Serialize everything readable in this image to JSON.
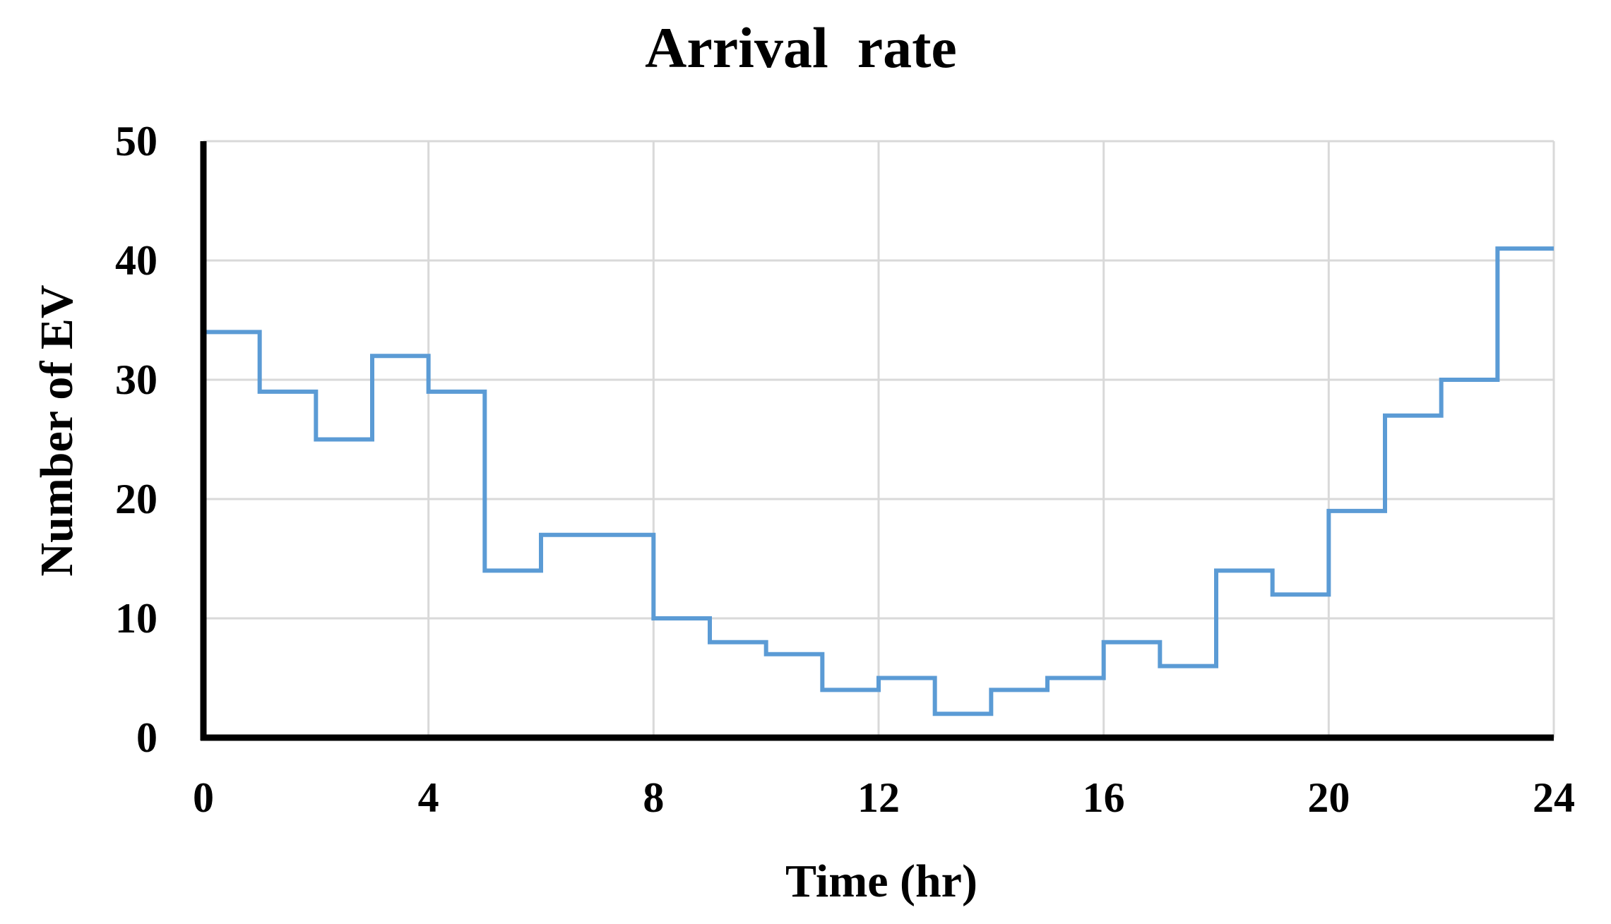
{
  "chart_data": {
    "type": "line",
    "title": "Arrival  rate",
    "xlabel": "Time (hr)",
    "ylabel": "Number of EV",
    "xlim": [
      0,
      24
    ],
    "ylim": [
      0,
      50
    ],
    "x_ticks": [
      "0",
      "4",
      "8",
      "12",
      "16",
      "20",
      "24"
    ],
    "y_ticks": [
      "0",
      "10",
      "20",
      "30",
      "40",
      "50"
    ],
    "grid": true,
    "step": "post",
    "series_color": "#5b9bd5",
    "x": [
      0,
      1,
      2,
      3,
      4,
      5,
      6,
      7,
      8,
      9,
      10,
      11,
      12,
      13,
      14,
      15,
      16,
      17,
      18,
      19,
      20,
      21,
      22,
      23,
      24
    ],
    "values": [
      34,
      29,
      25,
      32,
      29,
      14,
      17,
      17,
      10,
      8,
      7,
      4,
      5,
      2,
      4,
      5,
      8,
      6,
      14,
      12,
      19,
      27,
      30,
      41,
      41
    ]
  }
}
